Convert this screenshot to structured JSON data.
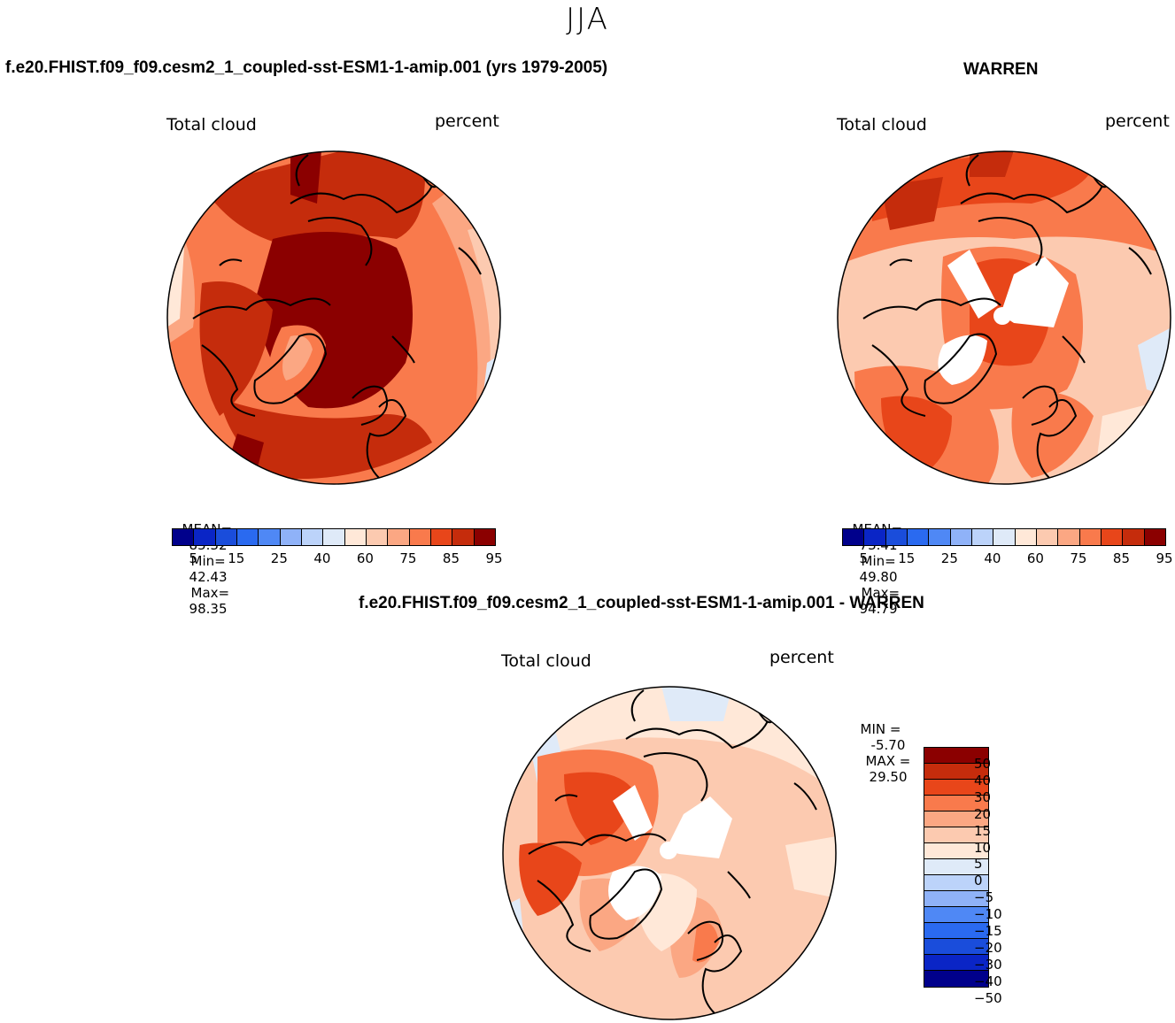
{
  "figure": {
    "title": "JJA"
  },
  "panels": {
    "left": {
      "case_title": "f.e20.FHIST.f09_f09.cesm2_1_coupled-sst-ESM1-1-amip.001 (yrs 1979-2005)",
      "variable_label": "Total cloud",
      "units_label": "percent",
      "stats": {
        "mean_label": "MEAN=",
        "mean": "85.32",
        "min_label": "Min=",
        "min": "42.43",
        "max_label": "Max=",
        "max": "98.35"
      }
    },
    "right": {
      "case_title": "WARREN",
      "variable_label": "Total cloud",
      "units_label": "percent",
      "stats": {
        "mean_label": "MEAN=",
        "mean": "73.41",
        "min_label": "Min=",
        "min": "49.80",
        "max_label": "Max=",
        "max": "94.79"
      }
    },
    "diff": {
      "case_title": "f.e20.FHIST.f09_f09.cesm2_1_coupled-sst-ESM1-1-amip.001 - WARREN",
      "variable_label": "Total cloud",
      "units_label": "percent",
      "stats": {
        "min_label": "MIN =",
        "min": "-5.70",
        "max_label": "MAX =",
        "max": "29.50"
      }
    }
  },
  "colorbars": {
    "abs": {
      "colors": [
        "#00008b",
        "#0a25c6",
        "#1a4ddb",
        "#2a6af0",
        "#4f88f5",
        "#8fb2f8",
        "#bcd3fa",
        "#dfeaf8",
        "#ffe8d8",
        "#fccab0",
        "#fba783",
        "#f97a4c",
        "#e8461a",
        "#c52c0c",
        "#8b0000"
      ],
      "tick_labels": [
        "5",
        "15",
        "25",
        "40",
        "60",
        "75",
        "85",
        "95"
      ]
    },
    "diff": {
      "colors_top_to_bottom": [
        "#8b0000",
        "#c52c0c",
        "#e8461a",
        "#f97a4c",
        "#fba783",
        "#fccab0",
        "#ffe8d8",
        "#dfeaf8",
        "#bcd3fa",
        "#8fb2f8",
        "#4f88f5",
        "#2a6af0",
        "#1a4ddb",
        "#0a25c6",
        "#00008b"
      ],
      "tick_labels": [
        "50",
        "40",
        "30",
        "20",
        "15",
        "10",
        "5",
        "0",
        "−5",
        "−10",
        "−15",
        "−20",
        "−30",
        "−40",
        "−50"
      ]
    }
  }
}
